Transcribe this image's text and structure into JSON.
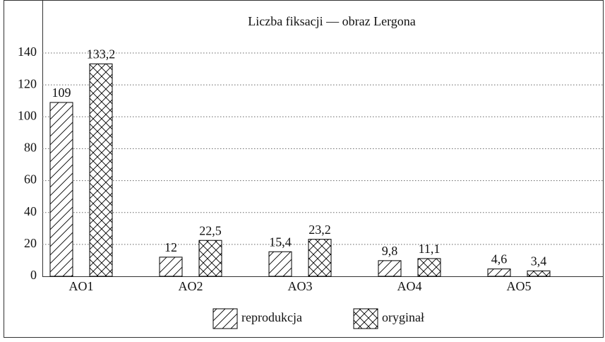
{
  "chart_data": {
    "type": "bar",
    "title": "Liczba fiksacji — obraz Lergona",
    "categories": [
      "AO1",
      "AO2",
      "AO3",
      "AO4",
      "AO5"
    ],
    "series": [
      {
        "name": "reprodukcja",
        "color": "#000000",
        "hatch": "diagonal",
        "values": [
          109,
          12,
          15.4,
          9.8,
          4.6
        ],
        "value_labels": [
          "109",
          "12",
          "15,4",
          "9,8",
          "4,6"
        ]
      },
      {
        "name": "oryginał",
        "color": "#000000",
        "hatch": "cross",
        "values": [
          133.2,
          22.5,
          23.2,
          11.1,
          3.4
        ],
        "value_labels": [
          "133,2",
          "22,5",
          "23,2",
          "11,1",
          "3,4"
        ]
      }
    ],
    "ylim": [
      0,
      170
    ],
    "yticks": [
      0,
      20,
      40,
      60,
      80,
      100,
      120,
      140
    ],
    "grid": true,
    "legend": "bottom"
  }
}
